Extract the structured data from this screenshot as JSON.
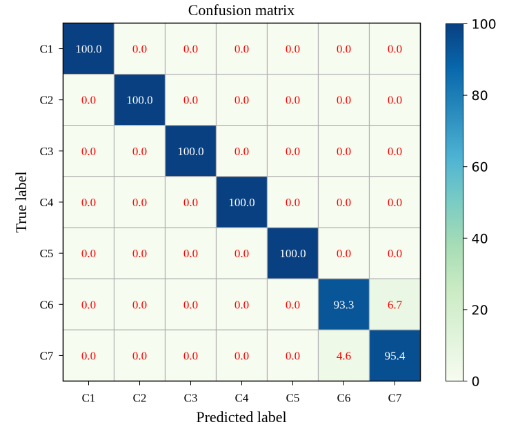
{
  "chart_data": {
    "type": "heatmap",
    "title": "Confusion matrix",
    "xlabel": "Predicted label",
    "ylabel": "True label",
    "x_categories": [
      "C1",
      "C2",
      "C3",
      "C4",
      "C5",
      "C6",
      "C7"
    ],
    "y_categories": [
      "C1",
      "C2",
      "C3",
      "C4",
      "C5",
      "C6",
      "C7"
    ],
    "values": [
      [
        100.0,
        0.0,
        0.0,
        0.0,
        0.0,
        0.0,
        0.0
      ],
      [
        0.0,
        100.0,
        0.0,
        0.0,
        0.0,
        0.0,
        0.0
      ],
      [
        0.0,
        0.0,
        100.0,
        0.0,
        0.0,
        0.0,
        0.0
      ],
      [
        0.0,
        0.0,
        0.0,
        100.0,
        0.0,
        0.0,
        0.0
      ],
      [
        0.0,
        0.0,
        0.0,
        0.0,
        100.0,
        0.0,
        0.0
      ],
      [
        0.0,
        0.0,
        0.0,
        0.0,
        0.0,
        93.3,
        6.7
      ],
      [
        0.0,
        0.0,
        0.0,
        0.0,
        0.0,
        4.6,
        95.4
      ]
    ],
    "value_range": [
      0,
      100
    ],
    "colorbar_ticks": [
      0,
      20,
      40,
      60,
      80,
      100
    ],
    "colormap": "GnBu",
    "colormap_stops": [
      "#f7fcf0",
      "#e0f3db",
      "#ccebc5",
      "#a8ddb5",
      "#7bccc4",
      "#4eb3d3",
      "#2b8cbe",
      "#0868ac",
      "#084081"
    ],
    "label_color_low": "#ff0000",
    "label_color_high": "#ffffff",
    "grid_line_color": "#b0b0b0"
  }
}
